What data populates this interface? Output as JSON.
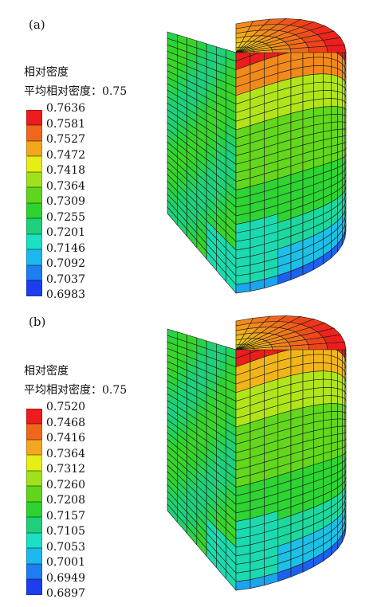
{
  "panels": [
    {
      "label": "(a)",
      "legend_title": "相对密度",
      "legend_subtitle": "平均相对密度：0.75",
      "legend_values": [
        "0.7636",
        "0.7581",
        "0.7527",
        "0.7472",
        "0.7418",
        "0.7364",
        "0.7309",
        "0.7255",
        "0.7201",
        "0.7146",
        "0.7092",
        "0.7037",
        "0.6983"
      ]
    },
    {
      "label": "(b)",
      "legend_title": "相对密度",
      "legend_subtitle": "平均相对密度：0.75",
      "legend_values": [
        "0.7520",
        "0.7468",
        "0.7416",
        "0.7364",
        "0.7312",
        "0.7260",
        "0.7208",
        "0.7157",
        "0.7105",
        "0.7053",
        "0.7001",
        "0.6949",
        "0.6897"
      ]
    }
  ],
  "colormap": [
    "#ee1c1c",
    "#f0661a",
    "#f4a71c",
    "#e6ee14",
    "#9fe21c",
    "#5fd61c",
    "#2ed42e",
    "#1ed07a",
    "#1ae0c4",
    "#1cb8ee",
    "#1c7ef0",
    "#1c3ef0"
  ]
}
